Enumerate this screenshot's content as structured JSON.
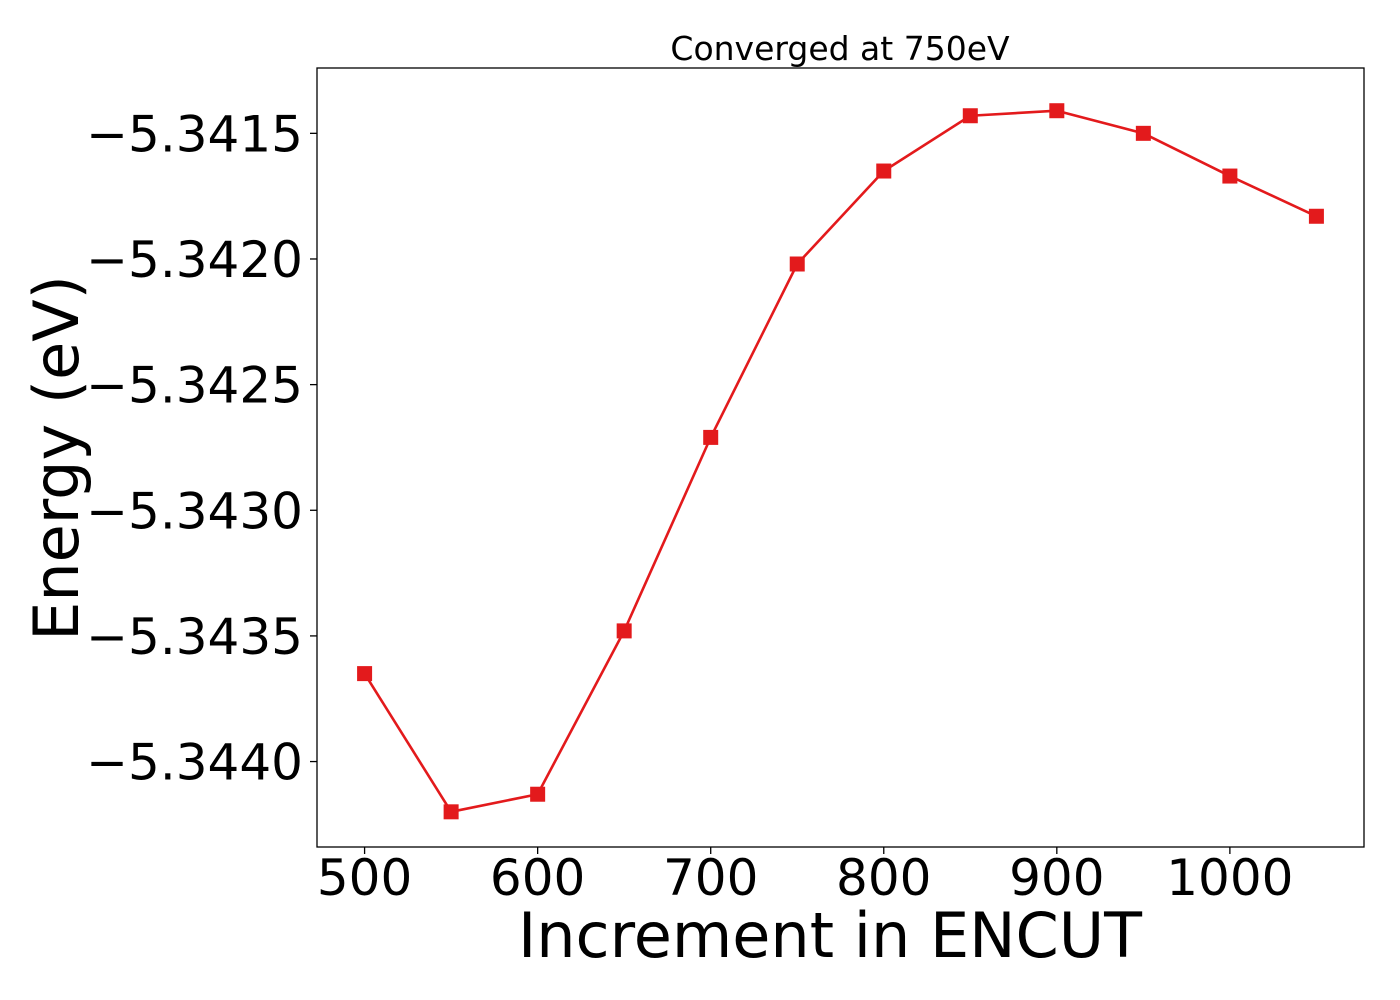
{
  "chart_data": {
    "type": "line",
    "title": "Converged at 750eV",
    "xlabel": "Increment in ENCUT",
    "ylabel": "Energy (eV)",
    "xlim": [
      472.5,
      1077.5
    ],
    "ylim": [
      -5.34434,
      -5.34124
    ],
    "grid": false,
    "x_ticks": [
      500,
      600,
      700,
      800,
      900,
      1000
    ],
    "y_ticks": [
      -5.3415,
      -5.342,
      -5.3425,
      -5.343,
      -5.3435,
      -5.344
    ],
    "y_tick_labels": [
      "−5.3415",
      "−5.3420",
      "−5.3425",
      "−5.3430",
      "−5.3435",
      "−5.3440"
    ],
    "series": [
      {
        "color": "#e31a1c",
        "marker": "square",
        "x": [
          500,
          550,
          600,
          650,
          700,
          750,
          800,
          850,
          900,
          950,
          1000,
          1050
        ],
        "y": [
          -5.34365,
          -5.3442,
          -5.34413,
          -5.34348,
          -5.34271,
          -5.34202,
          -5.34165,
          -5.34143,
          -5.34141,
          -5.3415,
          -5.34167,
          -5.34183
        ]
      }
    ]
  }
}
